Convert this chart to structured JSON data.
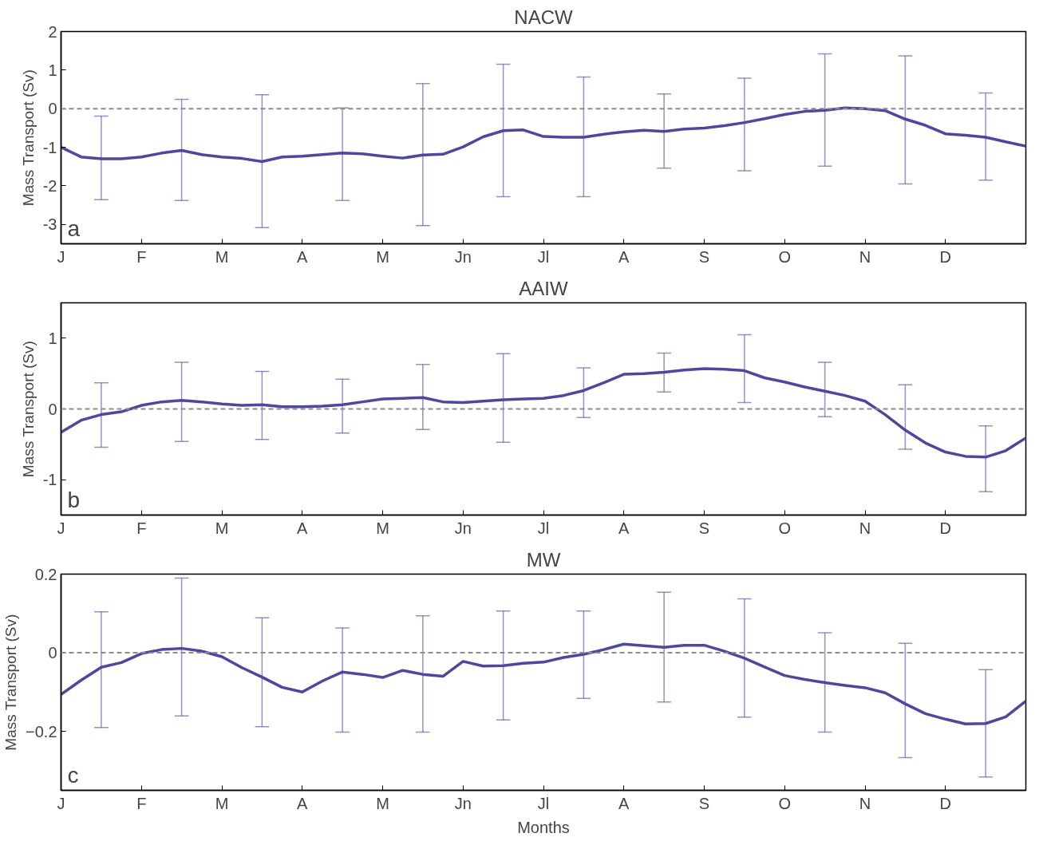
{
  "chart_data": [
    {
      "type": "line",
      "title": "NACW",
      "ylabel": "Mass Transport (Sv)",
      "annotations": [
        "a"
      ],
      "ylim": [
        -3.5,
        2
      ],
      "yticks": [
        -3,
        -2,
        -1,
        0,
        1,
        2
      ],
      "categories": [
        "J",
        null,
        null,
        null,
        "F",
        null,
        null,
        null,
        "M",
        null,
        null,
        null,
        "A",
        null,
        null,
        null,
        "M",
        null,
        null,
        null,
        "Jn",
        null,
        null,
        null,
        "Jl",
        null,
        null,
        null,
        "A",
        null,
        null,
        null,
        "S",
        null,
        null,
        null,
        "O",
        null,
        null,
        null,
        "N",
        null,
        null,
        null,
        "D",
        null,
        null,
        null,
        null
      ],
      "grid": false,
      "ref_lines": [
        {
          "axis": "y",
          "value": 0,
          "color": "#8c8c8c",
          "line_style": "dashed"
        }
      ],
      "series": [
        {
          "color": "#4b47a6",
          "values": [
            -1.0,
            -1.25,
            -1.3,
            -1.3,
            -1.25,
            -1.15,
            -1.08,
            -1.19,
            -1.25,
            -1.29,
            -1.37,
            -1.25,
            -1.23,
            -1.19,
            -1.15,
            -1.17,
            -1.23,
            -1.28,
            -1.2,
            -1.18,
            -0.99,
            -0.73,
            -0.57,
            -0.55,
            -0.72,
            -0.74,
            -0.74,
            -0.66,
            -0.6,
            -0.56,
            -0.59,
            -0.53,
            -0.5,
            -0.44,
            -0.36,
            -0.26,
            -0.15,
            -0.07,
            -0.04,
            0.02,
            0,
            -0.05,
            -0.27,
            -0.43,
            -0.65,
            -0.69,
            -0.74,
            -0.86,
            -0.97
          ],
          "errors": [
            null,
            null,
            [
              -2.36,
              -0.19
            ],
            null,
            null,
            null,
            [
              -2.38,
              0.24
            ],
            null,
            null,
            null,
            [
              -3.08,
              0.36
            ],
            null,
            null,
            null,
            [
              -2.38,
              0.02
            ],
            null,
            null,
            null,
            [
              -3.03,
              0.65
            ],
            null,
            null,
            null,
            [
              -2.28,
              1.15
            ],
            null,
            null,
            null,
            [
              -2.28,
              0.82
            ],
            null,
            null,
            null,
            [
              -1.54,
              0.38
            ],
            null,
            null,
            null,
            [
              -1.61,
              0.79
            ],
            null,
            null,
            null,
            [
              -1.49,
              1.42
            ],
            null,
            null,
            null,
            [
              -1.95,
              1.37
            ],
            null,
            null,
            null,
            [
              -1.85,
              0.41
            ],
            null,
            null
          ]
        }
      ]
    },
    {
      "type": "line",
      "title": "AAIW",
      "ylabel": "Mass Transport (Sv)",
      "annotations": [
        "b"
      ],
      "ylim": [
        -1.5,
        1.5
      ],
      "yticks": [
        -1,
        0,
        1
      ],
      "categories": [
        "J",
        null,
        null,
        null,
        "F",
        null,
        null,
        null,
        "M",
        null,
        null,
        null,
        "A",
        null,
        null,
        null,
        "M",
        null,
        null,
        null,
        "Jn",
        null,
        null,
        null,
        "Jl",
        null,
        null,
        null,
        "A",
        null,
        null,
        null,
        "S",
        null,
        null,
        null,
        "O",
        null,
        null,
        null,
        "N",
        null,
        null,
        null,
        "D",
        null,
        null,
        null,
        null
      ],
      "grid": false,
      "ref_lines": [
        {
          "axis": "y",
          "value": 0,
          "color": "#8c8c8c",
          "line_style": "dashed"
        }
      ],
      "series": [
        {
          "color": "#4b47a6",
          "values": [
            -0.33,
            -0.16,
            -0.08,
            -0.04,
            0.05,
            0.1,
            0.12,
            0.1,
            0.07,
            0.05,
            0.06,
            0.03,
            0.03,
            0.04,
            0.06,
            0.1,
            0.14,
            0.15,
            0.16,
            0.1,
            0.09,
            0.11,
            0.13,
            0.14,
            0.15,
            0.19,
            0.26,
            0.37,
            0.49,
            0.5,
            0.52,
            0.55,
            0.57,
            0.56,
            0.54,
            0.44,
            0.38,
            0.31,
            0.25,
            0.19,
            0.11,
            -0.08,
            -0.3,
            -0.48,
            -0.61,
            -0.67,
            -0.68,
            -0.59,
            -0.41
          ],
          "errors": [
            null,
            null,
            [
              -0.54,
              0.37
            ],
            null,
            null,
            null,
            [
              -0.46,
              0.66
            ],
            null,
            null,
            null,
            [
              -0.43,
              0.53
            ],
            null,
            null,
            null,
            [
              -0.34,
              0.42
            ],
            null,
            null,
            null,
            [
              -0.29,
              0.63
            ],
            null,
            null,
            null,
            [
              -0.47,
              0.78
            ],
            null,
            null,
            null,
            [
              -0.12,
              0.58
            ],
            null,
            null,
            null,
            [
              0.24,
              0.79
            ],
            null,
            null,
            null,
            [
              0.09,
              1.05
            ],
            null,
            null,
            null,
            [
              -0.11,
              0.66
            ],
            null,
            null,
            null,
            [
              -0.57,
              0.34
            ],
            null,
            null,
            null,
            [
              -1.17,
              -0.24
            ],
            null,
            null
          ]
        }
      ]
    },
    {
      "type": "line",
      "title": "MW",
      "xlabel": "Months",
      "ylabel": "Mass Transport (Sv)",
      "annotations": [
        "c"
      ],
      "ylim": [
        -0.35,
        0.2
      ],
      "yticks": [
        {
          "value": -0.2,
          "label": "−0.2"
        },
        0,
        0.2
      ],
      "categories": [
        "J",
        null,
        null,
        null,
        "F",
        null,
        null,
        null,
        "M",
        null,
        null,
        null,
        "A",
        null,
        null,
        null,
        "M",
        null,
        null,
        null,
        "Jn",
        null,
        null,
        null,
        "Jl",
        null,
        null,
        null,
        "A",
        null,
        null,
        null,
        "S",
        null,
        null,
        null,
        "O",
        null,
        null,
        null,
        "N",
        null,
        null,
        null,
        "D",
        null,
        null,
        null,
        null
      ],
      "grid": false,
      "ref_lines": [
        {
          "axis": "y",
          "value": 0,
          "color": "#8c8c8c",
          "line_style": "dashed"
        }
      ],
      "series": [
        {
          "color": "#4b47a6",
          "values": [
            -0.106,
            -0.07,
            -0.037,
            -0.025,
            -0.002,
            0.008,
            0.011,
            0.004,
            -0.01,
            -0.038,
            -0.062,
            -0.088,
            -0.1,
            -0.072,
            -0.049,
            -0.055,
            -0.063,
            -0.045,
            -0.055,
            -0.06,
            -0.022,
            -0.034,
            -0.033,
            -0.027,
            -0.024,
            -0.012,
            -0.004,
            0.008,
            0.022,
            0.018,
            0.014,
            0.019,
            0.019,
            0.004,
            -0.014,
            -0.036,
            -0.058,
            -0.068,
            -0.076,
            -0.083,
            -0.089,
            -0.102,
            -0.13,
            -0.155,
            -0.169,
            -0.181,
            -0.18,
            -0.163,
            -0.123
          ],
          "errors": [
            null,
            null,
            [
              -0.19,
              0.104
            ],
            null,
            null,
            null,
            [
              -0.161,
              0.19
            ],
            null,
            null,
            null,
            [
              -0.188,
              0.089
            ],
            null,
            null,
            null,
            [
              -0.202,
              0.063
            ],
            null,
            null,
            null,
            [
              -0.202,
              0.094
            ],
            null,
            null,
            null,
            [
              -0.171,
              0.106
            ],
            null,
            null,
            null,
            [
              -0.116,
              0.106
            ],
            null,
            null,
            null,
            [
              -0.125,
              0.154
            ],
            null,
            null,
            null,
            [
              -0.164,
              0.137
            ],
            null,
            null,
            null,
            [
              -0.202,
              0.051
            ],
            null,
            null,
            null,
            [
              -0.267,
              0.024
            ],
            null,
            null,
            null,
            [
              -0.316,
              -0.043
            ],
            null,
            null
          ]
        }
      ]
    }
  ]
}
